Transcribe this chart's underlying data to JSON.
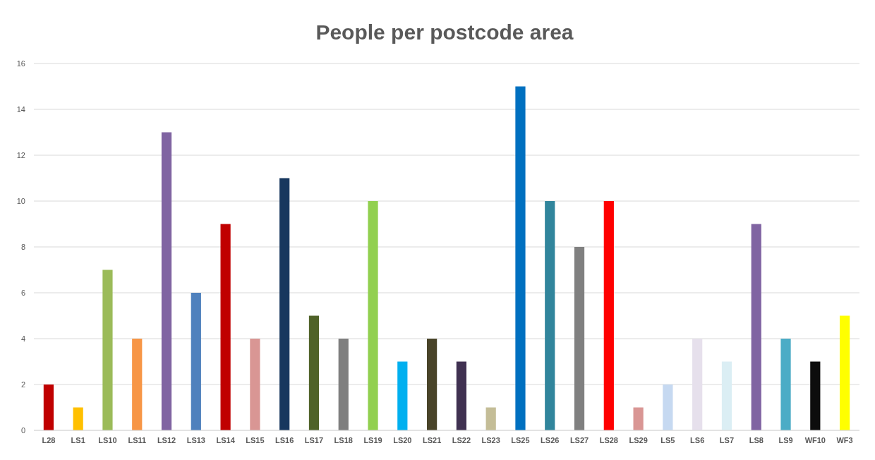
{
  "chart_data": {
    "type": "bar",
    "title": "People per postcode area",
    "categories": [
      "L28",
      "LS1",
      "LS10",
      "LS11",
      "LS12",
      "LS13",
      "LS14",
      "LS15",
      "LS16",
      "LS17",
      "LS18",
      "LS19",
      "LS20",
      "LS21",
      "LS22",
      "LS23",
      "LS25",
      "LS26",
      "LS27",
      "LS28",
      "LS29",
      "LS5",
      "LS6",
      "LS7",
      "LS8",
      "LS9",
      "WF10",
      "WF3"
    ],
    "values": [
      2,
      1,
      7,
      4,
      13,
      6,
      9,
      4,
      11,
      5,
      4,
      10,
      3,
      4,
      3,
      1,
      15,
      10,
      8,
      10,
      1,
      2,
      4,
      3,
      9,
      4,
      3,
      5
    ],
    "colors": [
      "#c00000",
      "#ffc000",
      "#9bbb59",
      "#f79646",
      "#8064a2",
      "#4f81bd",
      "#c00000",
      "#d99694",
      "#17375e",
      "#4f6228",
      "#7f7f7f",
      "#92d050",
      "#00b0f0",
      "#494429",
      "#403151",
      "#c4bd97",
      "#0070c0",
      "#31859c",
      "#808080",
      "#ff0000",
      "#d99694",
      "#c6d9f1",
      "#e6e0ec",
      "#dbeef4",
      "#8064a2",
      "#4bacc6",
      "#0d0d0d",
      "#ffff00"
    ],
    "ylim": [
      0,
      16
    ],
    "yticks": [
      0,
      2,
      4,
      6,
      8,
      10,
      12,
      14,
      16
    ],
    "grid": "y"
  }
}
